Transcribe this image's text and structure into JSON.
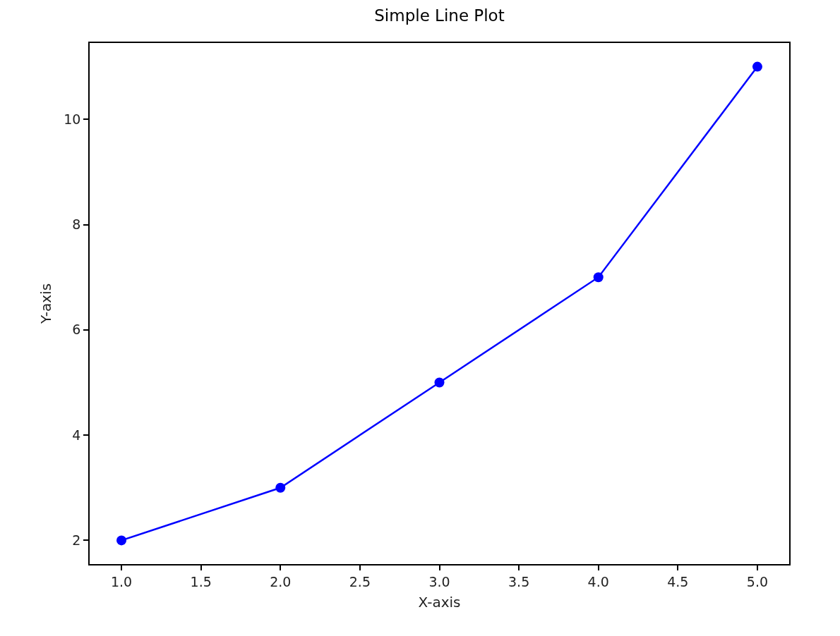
{
  "chart_data": {
    "type": "line",
    "title": "Simple Line Plot",
    "xlabel": "X-axis",
    "ylabel": "Y-axis",
    "x": [
      1,
      2,
      3,
      4,
      5
    ],
    "series": [
      {
        "color": "#0000ff",
        "values": [
          2,
          3,
          5,
          7,
          11
        ]
      }
    ],
    "xlim": [
      0.8,
      5.2
    ],
    "xticks": [
      {
        "value": 1,
        "label": "1.0"
      },
      {
        "value": 1.5,
        "label": "1.5"
      },
      {
        "value": 2,
        "label": "2.0"
      },
      {
        "value": 2.5,
        "label": "2.5"
      },
      {
        "value": 3,
        "label": "3.0"
      },
      {
        "value": 3.5,
        "label": "3.5"
      },
      {
        "value": 4,
        "label": "4.0"
      },
      {
        "value": 4.5,
        "label": "4.5"
      },
      {
        "value": 5,
        "label": "5.0"
      }
    ],
    "ylim": [
      1.55,
      11.45
    ],
    "yticks": [
      2,
      4,
      6,
      8,
      10
    ],
    "grid": false,
    "marker": "circle",
    "line_style": "solid"
  }
}
